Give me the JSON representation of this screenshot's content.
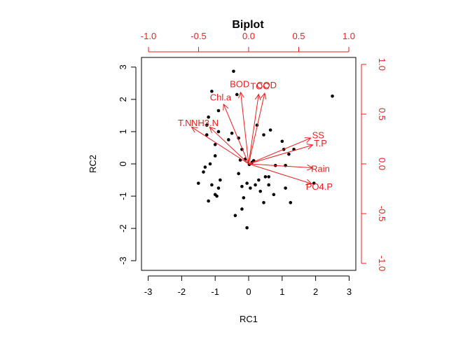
{
  "chart_data": {
    "type": "scatter",
    "title": "Biplot",
    "xlabel": "RC1",
    "ylabel": "RC2",
    "xlim": [
      -3.2,
      3.2
    ],
    "ylim": [
      -3.3,
      3.3
    ],
    "x_ticks": [
      -3,
      -2,
      -1,
      0,
      1,
      2,
      3
    ],
    "y_ticks": [
      -3,
      -2,
      -1,
      0,
      1,
      2,
      3
    ],
    "loading_lim": [
      -1.07,
      1.07
    ],
    "top_ticks": [
      -1.0,
      -0.5,
      0.0,
      0.5,
      1.0
    ],
    "top_tick_labels": [
      "-1.0",
      "-0.5",
      "0.0",
      "0.5",
      "1.0"
    ],
    "right_ticks": [
      -1.0,
      -0.5,
      0.0,
      0.5,
      1.0
    ],
    "right_tick_labels": [
      "-1.0",
      "-0.5",
      "0.0",
      "0.5",
      "1.0"
    ],
    "point_color": "#000000",
    "loading_color": "#ee1c1c",
    "points": [
      [
        -0.45,
        2.87
      ],
      [
        -0.35,
        2.15
      ],
      [
        -1.1,
        2.25
      ],
      [
        -0.9,
        1.65
      ],
      [
        -1.2,
        1.45
      ],
      [
        -1.25,
        1.2
      ],
      [
        -0.9,
        1.0
      ],
      [
        -1.25,
        0.9
      ],
      [
        -0.5,
        0.95
      ],
      [
        -0.3,
        0.8
      ],
      [
        -0.6,
        0.75
      ],
      [
        -1.0,
        0.6
      ],
      [
        -0.2,
        0.45
      ],
      [
        -1.0,
        0.25
      ],
      [
        -0.1,
        0.15
      ],
      [
        -1.15,
        0.0
      ],
      [
        -1.3,
        -0.1
      ],
      [
        -1.35,
        -0.25
      ],
      [
        -0.3,
        -0.3
      ],
      [
        -1.5,
        -0.6
      ],
      [
        -0.85,
        -0.5
      ],
      [
        -0.9,
        -0.75
      ],
      [
        -1.0,
        -0.95
      ],
      [
        -0.95,
        -1.0
      ],
      [
        -1.1,
        -0.65
      ],
      [
        -1.2,
        -1.15
      ],
      [
        -0.2,
        -0.7
      ],
      [
        -0.05,
        -0.6
      ],
      [
        0.05,
        -0.75
      ],
      [
        0.2,
        -0.65
      ],
      [
        0.35,
        -0.85
      ],
      [
        0.6,
        -0.65
      ],
      [
        0.6,
        -0.4
      ],
      [
        0.5,
        -0.4
      ],
      [
        0.3,
        -0.5
      ],
      [
        -0.15,
        -1.05
      ],
      [
        -0.2,
        -1.4
      ],
      [
        -0.4,
        -1.6
      ],
      [
        -0.05,
        -1.98
      ],
      [
        0.45,
        -1.2
      ],
      [
        0.75,
        -0.95
      ],
      [
        1.25,
        -1.2
      ],
      [
        1.1,
        -0.75
      ],
      [
        0.8,
        -0.05
      ],
      [
        1.1,
        -0.05
      ],
      [
        0.15,
        0.1
      ],
      [
        0.45,
        0.9
      ],
      [
        0.65,
        1.05
      ],
      [
        0.25,
        1.2
      ],
      [
        1.0,
        0.7
      ],
      [
        1.05,
        0.45
      ],
      [
        1.35,
        0.45
      ],
      [
        1.2,
        0.3
      ],
      [
        1.95,
        -0.6
      ],
      [
        2.5,
        2.1
      ],
      [
        0.1,
        0.05
      ],
      [
        -0.25,
        0.12
      ],
      [
        0.02,
        -0.02
      ]
    ],
    "loadings": [
      {
        "name": "SS",
        "x": 0.62,
        "y": 0.26
      },
      {
        "name": "T.P",
        "x": 0.64,
        "y": 0.19
      },
      {
        "name": "Rain",
        "x": 0.64,
        "y": -0.04
      },
      {
        "name": "PO4.P",
        "x": 0.63,
        "y": -0.2
      },
      {
        "name": "COD",
        "x": 0.16,
        "y": 0.71
      },
      {
        "name": "TOC",
        "x": 0.1,
        "y": 0.7
      },
      {
        "name": "BOD",
        "x": -0.08,
        "y": 0.72
      },
      {
        "name": "Chl.a",
        "x": -0.25,
        "y": 0.6
      },
      {
        "name": "NH3.N",
        "x": -0.39,
        "y": 0.37
      },
      {
        "name": "T.N",
        "x": -0.57,
        "y": 0.37
      }
    ]
  }
}
